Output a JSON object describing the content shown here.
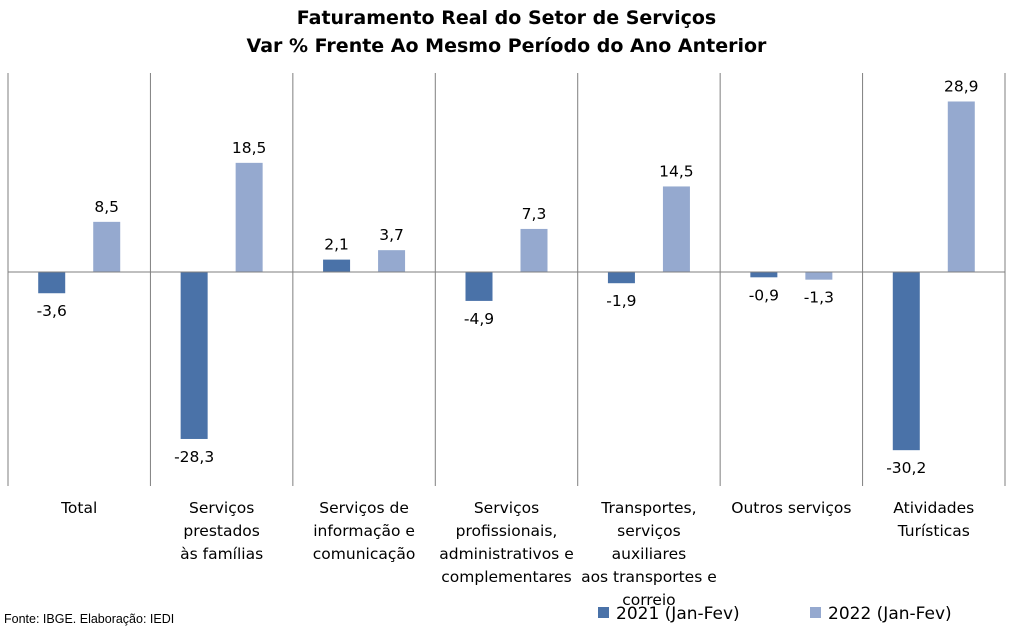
{
  "chart_data": {
    "type": "bar",
    "title": "Faturamento Real do Setor de Serviços",
    "subtitle": "Var % Frente Ao Mesmo Período do Ano Anterior",
    "categories": [
      "Total",
      "Serviços prestados às famílias",
      "Serviços de informação e comunicação",
      "Serviços profissionais, administrativos e complementares",
      "Transportes, serviços auxiliares aos transportes e correio",
      "Outros serviços",
      "Atividades Turísticas"
    ],
    "series": [
      {
        "name": "2021 (Jan-Fev)",
        "color": "#4a72a8",
        "values": [
          -3.6,
          -28.3,
          2.1,
          -4.9,
          -1.9,
          -0.9,
          -30.2
        ],
        "labels": [
          "-3,6",
          "-28,3",
          "2,1",
          "-4,9",
          "-1,9",
          "-0,9",
          "-30,2"
        ]
      },
      {
        "name": "2022 (Jan-Fev)",
        "color": "#95a9cf",
        "values": [
          8.5,
          18.5,
          3.7,
          7.3,
          14.5,
          -1.3,
          28.9
        ],
        "labels": [
          "8,5",
          "18,5",
          "3,7",
          "7,3",
          "14,5",
          "-1,3",
          "28,9"
        ]
      }
    ],
    "ylim": [
      -36,
      34
    ],
    "grid": "vertical category separators",
    "legend": "bottom-right"
  },
  "category_lines": [
    [
      "Total"
    ],
    [
      "Serviços prestados",
      "às famílias"
    ],
    [
      "Serviços de",
      "informação e",
      "comunicação"
    ],
    [
      "Serviços",
      "profissionais,",
      "administrativos e",
      "complementares"
    ],
    [
      "Transportes,",
      "serviços auxiliares",
      "aos transportes e",
      "correio"
    ],
    [
      "Outros serviços"
    ],
    [
      "Atividades",
      "Turísticas"
    ]
  ],
  "source": "Fonte: IBGE. Elaboração: IEDI"
}
